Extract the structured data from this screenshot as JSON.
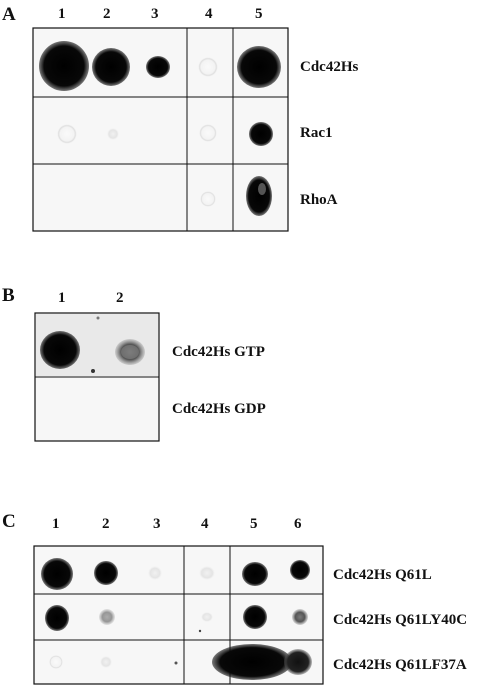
{
  "panelA": {
    "letter": "A",
    "lanes": [
      "1",
      "2",
      "3",
      "4",
      "5"
    ],
    "rows": [
      "Cdc42Hs",
      "Rac1",
      "RhoA"
    ]
  },
  "panelB": {
    "letter": "B",
    "lanes": [
      "1",
      "2"
    ],
    "rows": [
      "Cdc42Hs GTP",
      "Cdc42Hs GDP"
    ]
  },
  "panelC": {
    "letter": "C",
    "lanes": [
      "1",
      "2",
      "3",
      "4",
      "5",
      "6"
    ],
    "rows": [
      "Cdc42Hs Q61L",
      "Cdc42Hs Q61LY40C",
      "Cdc42Hs Q61LF37A"
    ]
  }
}
